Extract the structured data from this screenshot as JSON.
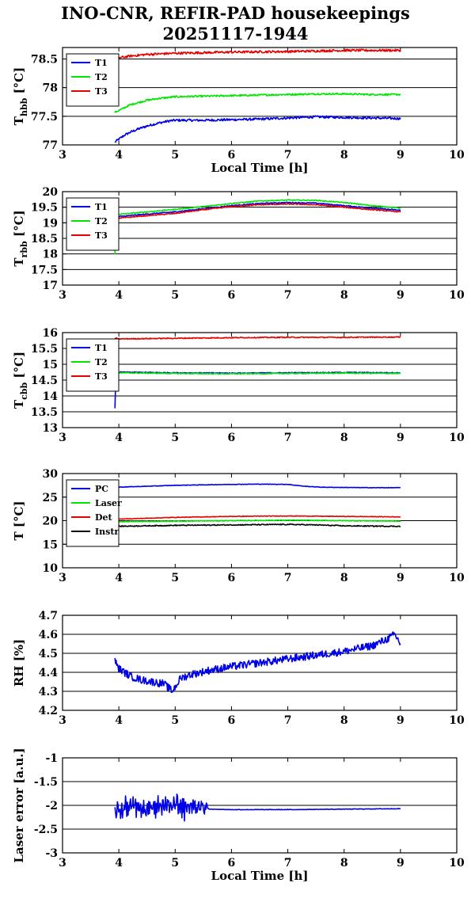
{
  "title": {
    "line1": "INO-CNR, REFIR-PAD housekeepings",
    "line2": "20251117-1944"
  },
  "colors": {
    "blue": "#0000e6",
    "green": "#00e600",
    "red": "#e60000",
    "black": "#000000"
  },
  "chart_data": [
    {
      "type": "line",
      "ylabel_main": "T",
      "ylabel_sub": "hbb",
      "ylabel_unit": "[°C]",
      "xlabel": "Local Time [h]",
      "xlim": [
        3,
        10
      ],
      "ylim": [
        77,
        78.7
      ],
      "xticks": [
        "3",
        "4",
        "5",
        "6",
        "7",
        "8",
        "9",
        "10"
      ],
      "yticks": [
        {
          "v": 77,
          "t": "77"
        },
        {
          "v": 77.5,
          "t": "77.5"
        },
        {
          "v": 78,
          "t": "78"
        },
        {
          "v": 78.5,
          "t": "78.5"
        }
      ],
      "grid": "y",
      "legend": "top-left",
      "series": [
        {
          "name": "T1",
          "color": "blue",
          "x": [
            3.93,
            4.0,
            4.1,
            4.2,
            4.35,
            4.5,
            4.7,
            4.9,
            5.0,
            5.5,
            6.0,
            6.5,
            7.0,
            7.5,
            8.0,
            8.5,
            9.0
          ],
          "y": [
            77.05,
            77.1,
            77.17,
            77.22,
            77.28,
            77.33,
            77.38,
            77.42,
            77.43,
            77.43,
            77.44,
            77.45,
            77.47,
            77.49,
            77.48,
            77.47,
            77.46
          ],
          "noise": 0.02
        },
        {
          "name": "T2",
          "color": "green",
          "x": [
            3.93,
            4.0,
            4.1,
            4.2,
            4.35,
            4.5,
            4.7,
            4.9,
            5.0,
            5.5,
            6.0,
            6.5,
            7.0,
            7.5,
            8.0,
            8.5,
            9.0
          ],
          "y": [
            77.57,
            77.6,
            77.65,
            77.7,
            77.74,
            77.78,
            77.81,
            77.83,
            77.84,
            77.85,
            77.86,
            77.87,
            77.88,
            77.89,
            77.89,
            77.88,
            77.88
          ],
          "noise": 0.015
        },
        {
          "name": "T3",
          "color": "red",
          "x": [
            3.93,
            4.0,
            4.2,
            4.5,
            5.0,
            6.0,
            7.0,
            8.0,
            9.0
          ],
          "y": [
            78.56,
            78.52,
            78.55,
            78.58,
            78.6,
            78.62,
            78.63,
            78.65,
            78.65
          ],
          "noise": 0.02
        }
      ]
    },
    {
      "type": "line",
      "ylabel_main": "T",
      "ylabel_sub": "rbb",
      "ylabel_unit": "[°C]",
      "xlabel": "",
      "xlim": [
        3,
        10
      ],
      "ylim": [
        17,
        20
      ],
      "xticks": [
        "3",
        "4",
        "5",
        "6",
        "7",
        "8",
        "9",
        "10"
      ],
      "yticks": [
        {
          "v": 17,
          "t": "17"
        },
        {
          "v": 17.5,
          "t": "17.5"
        },
        {
          "v": 18,
          "t": "18"
        },
        {
          "v": 18.5,
          "t": "18.5"
        },
        {
          "v": 19,
          "t": "19"
        },
        {
          "v": 19.5,
          "t": "19.5"
        },
        {
          "v": 20,
          "t": "20"
        }
      ],
      "grid": "y",
      "legend": "top-left",
      "series": [
        {
          "name": "T1",
          "color": "blue",
          "x": [
            3.93,
            3.94,
            3.96,
            4.0,
            4.5,
            5.0,
            5.5,
            6.0,
            6.5,
            7.0,
            7.5,
            8.0,
            8.5,
            9.0
          ],
          "y": [
            18.3,
            18.9,
            19.15,
            19.2,
            19.28,
            19.35,
            19.45,
            19.55,
            19.62,
            19.65,
            19.63,
            19.55,
            19.47,
            19.4
          ],
          "noise": 0.015
        },
        {
          "name": "T2",
          "color": "green",
          "x": [
            3.93,
            3.94,
            3.96,
            4.0,
            4.5,
            5.0,
            5.5,
            6.0,
            6.5,
            7.0,
            7.5,
            8.0,
            8.5,
            9.0
          ],
          "y": [
            18.0,
            18.9,
            19.2,
            19.27,
            19.35,
            19.43,
            19.52,
            19.62,
            19.7,
            19.73,
            19.72,
            19.65,
            19.55,
            19.47
          ],
          "noise": 0.015
        },
        {
          "name": "T3",
          "color": "red",
          "x": [
            3.93,
            3.94,
            3.96,
            4.0,
            4.5,
            5.0,
            5.5,
            6.0,
            6.5,
            7.0,
            7.5,
            8.0,
            8.5,
            9.0
          ],
          "y": [
            18.4,
            18.9,
            19.1,
            19.15,
            19.23,
            19.3,
            19.42,
            19.52,
            19.58,
            19.6,
            19.58,
            19.5,
            19.42,
            19.35
          ],
          "noise": 0.015
        }
      ]
    },
    {
      "type": "line",
      "ylabel_main": "T",
      "ylabel_sub": "cbb",
      "ylabel_unit": "[°C]",
      "xlabel": "",
      "xlim": [
        3,
        10
      ],
      "ylim": [
        13,
        16
      ],
      "xticks": [
        "3",
        "4",
        "5",
        "6",
        "7",
        "8",
        "9",
        "10"
      ],
      "yticks": [
        {
          "v": 13,
          "t": "13"
        },
        {
          "v": 13.5,
          "t": "13.5"
        },
        {
          "v": 14,
          "t": "14"
        },
        {
          "v": 14.5,
          "t": "14.5"
        },
        {
          "v": 15,
          "t": "15"
        },
        {
          "v": 15.5,
          "t": "15.5"
        },
        {
          "v": 16,
          "t": "16"
        }
      ],
      "grid": "y",
      "legend": "top-left",
      "series": [
        {
          "name": "T1",
          "color": "blue",
          "x": [
            3.93,
            3.94,
            3.96,
            4.0,
            5.0,
            6.0,
            7.0,
            8.0,
            9.0
          ],
          "y": [
            13.6,
            14.3,
            14.7,
            14.75,
            14.73,
            14.72,
            14.73,
            14.74,
            14.73
          ],
          "noise": 0.015
        },
        {
          "name": "T2",
          "color": "green",
          "x": [
            3.93,
            3.94,
            3.96,
            4.0,
            5.0,
            6.0,
            7.0,
            8.0,
            9.0
          ],
          "y": [
            14.2,
            14.5,
            14.7,
            14.73,
            14.71,
            14.7,
            14.71,
            14.72,
            14.71
          ],
          "noise": 0.015
        },
        {
          "name": "T3",
          "color": "red",
          "x": [
            3.93,
            3.96,
            4.0,
            5.0,
            6.0,
            7.0,
            8.0,
            9.0
          ],
          "y": [
            15.8,
            15.82,
            15.8,
            15.82,
            15.84,
            15.85,
            15.85,
            15.86
          ],
          "noise": 0.015
        }
      ]
    },
    {
      "type": "line",
      "ylabel_main": "T [°C]",
      "ylabel_sub": "",
      "ylabel_unit": "",
      "xlabel": "",
      "xlim": [
        3,
        10
      ],
      "ylim": [
        10,
        30
      ],
      "xticks": [
        "3",
        "4",
        "5",
        "6",
        "7",
        "8",
        "9",
        "10"
      ],
      "yticks": [
        {
          "v": 10,
          "t": "10"
        },
        {
          "v": 15,
          "t": "15"
        },
        {
          "v": 20,
          "t": "20"
        },
        {
          "v": 25,
          "t": "25"
        },
        {
          "v": 30,
          "t": "30"
        }
      ],
      "grid": "y",
      "legend": "top-left",
      "series": [
        {
          "name": "PC",
          "color": "blue",
          "x": [
            3.93,
            4.5,
            5.0,
            5.5,
            6.0,
            6.5,
            7.0,
            7.3,
            7.6,
            8.0,
            8.5,
            9.0
          ],
          "y": [
            27.1,
            27.3,
            27.5,
            27.6,
            27.7,
            27.75,
            27.7,
            27.3,
            27.1,
            27.05,
            27.0,
            27.0
          ],
          "noise": 0.05
        },
        {
          "name": "Laser",
          "color": "green",
          "x": [
            3.93,
            5.0,
            6.0,
            7.0,
            8.0,
            9.0
          ],
          "y": [
            19.8,
            19.9,
            20.0,
            20.1,
            20.0,
            19.9
          ],
          "noise": 0.08
        },
        {
          "name": "Det",
          "color": "red",
          "x": [
            3.93,
            5.0,
            6.0,
            7.0,
            8.0,
            9.0
          ],
          "y": [
            20.3,
            20.7,
            20.9,
            21.0,
            20.9,
            20.8
          ],
          "noise": 0.06
        },
        {
          "name": "Instr",
          "color": "black",
          "x": [
            3.93,
            5.0,
            6.0,
            7.0,
            7.5,
            8.0,
            9.0
          ],
          "y": [
            18.8,
            19.0,
            19.1,
            19.2,
            19.1,
            18.9,
            18.8
          ],
          "noise": 0.1
        }
      ]
    },
    {
      "type": "line",
      "ylabel_main": "RH [%]",
      "ylabel_sub": "",
      "ylabel_unit": "",
      "xlabel": "",
      "xlim": [
        3,
        10
      ],
      "ylim": [
        4.2,
        4.7
      ],
      "xticks": [
        "3",
        "4",
        "5",
        "6",
        "7",
        "8",
        "9",
        "10"
      ],
      "yticks": [
        {
          "v": 4.2,
          "t": "4.2"
        },
        {
          "v": 4.3,
          "t": "4.3"
        },
        {
          "v": 4.4,
          "t": "4.4"
        },
        {
          "v": 4.5,
          "t": "4.5"
        },
        {
          "v": 4.6,
          "t": "4.6"
        },
        {
          "v": 4.7,
          "t": "4.7"
        }
      ],
      "grid": "y",
      "legend": "",
      "series": [
        {
          "name": "",
          "color": "blue",
          "x": [
            3.93,
            4.0,
            4.2,
            4.4,
            4.6,
            4.8,
            4.95,
            5.1,
            5.3,
            5.6,
            6.0,
            6.5,
            7.0,
            7.5,
            8.0,
            8.5,
            8.8,
            8.9,
            9.0
          ],
          "y": [
            4.46,
            4.42,
            4.38,
            4.36,
            4.35,
            4.34,
            4.3,
            4.37,
            4.39,
            4.41,
            4.43,
            4.45,
            4.47,
            4.49,
            4.51,
            4.54,
            4.58,
            4.6,
            4.55
          ],
          "noise": 0.02
        }
      ]
    },
    {
      "type": "line",
      "ylabel_main": "Laser error [a.u.]",
      "ylabel_sub": "",
      "ylabel_unit": "",
      "xlabel": "Local Time [h]",
      "xlim": [
        3,
        10
      ],
      "ylim": [
        -3,
        -1
      ],
      "xticks": [
        "3",
        "4",
        "5",
        "6",
        "7",
        "8",
        "9",
        "10"
      ],
      "yticks": [
        {
          "v": -3,
          "t": "-3"
        },
        {
          "v": -2.5,
          "t": "-2.5"
        },
        {
          "v": -2,
          "t": "-2"
        },
        {
          "v": -1.5,
          "t": "-1.5"
        },
        {
          "v": -1,
          "t": "-1"
        }
      ],
      "grid": "y",
      "legend": "",
      "series": [
        {
          "name": "",
          "color": "blue",
          "x": [
            3.93,
            5.5,
            5.58,
            5.6,
            6.0,
            7.0,
            8.0,
            9.0
          ],
          "y": [
            -2.05,
            -2.05,
            -2.05,
            -2.08,
            -2.09,
            -2.09,
            -2.08,
            -2.07
          ],
          "noise": [
            0.0,
            0.0,
            0.0,
            0.0,
            0.005,
            0.005,
            0.005,
            0.005
          ],
          "osc": {
            "x0": 3.93,
            "x1": 5.58,
            "amp": 0.32,
            "center": -2.05
          }
        }
      ]
    }
  ]
}
